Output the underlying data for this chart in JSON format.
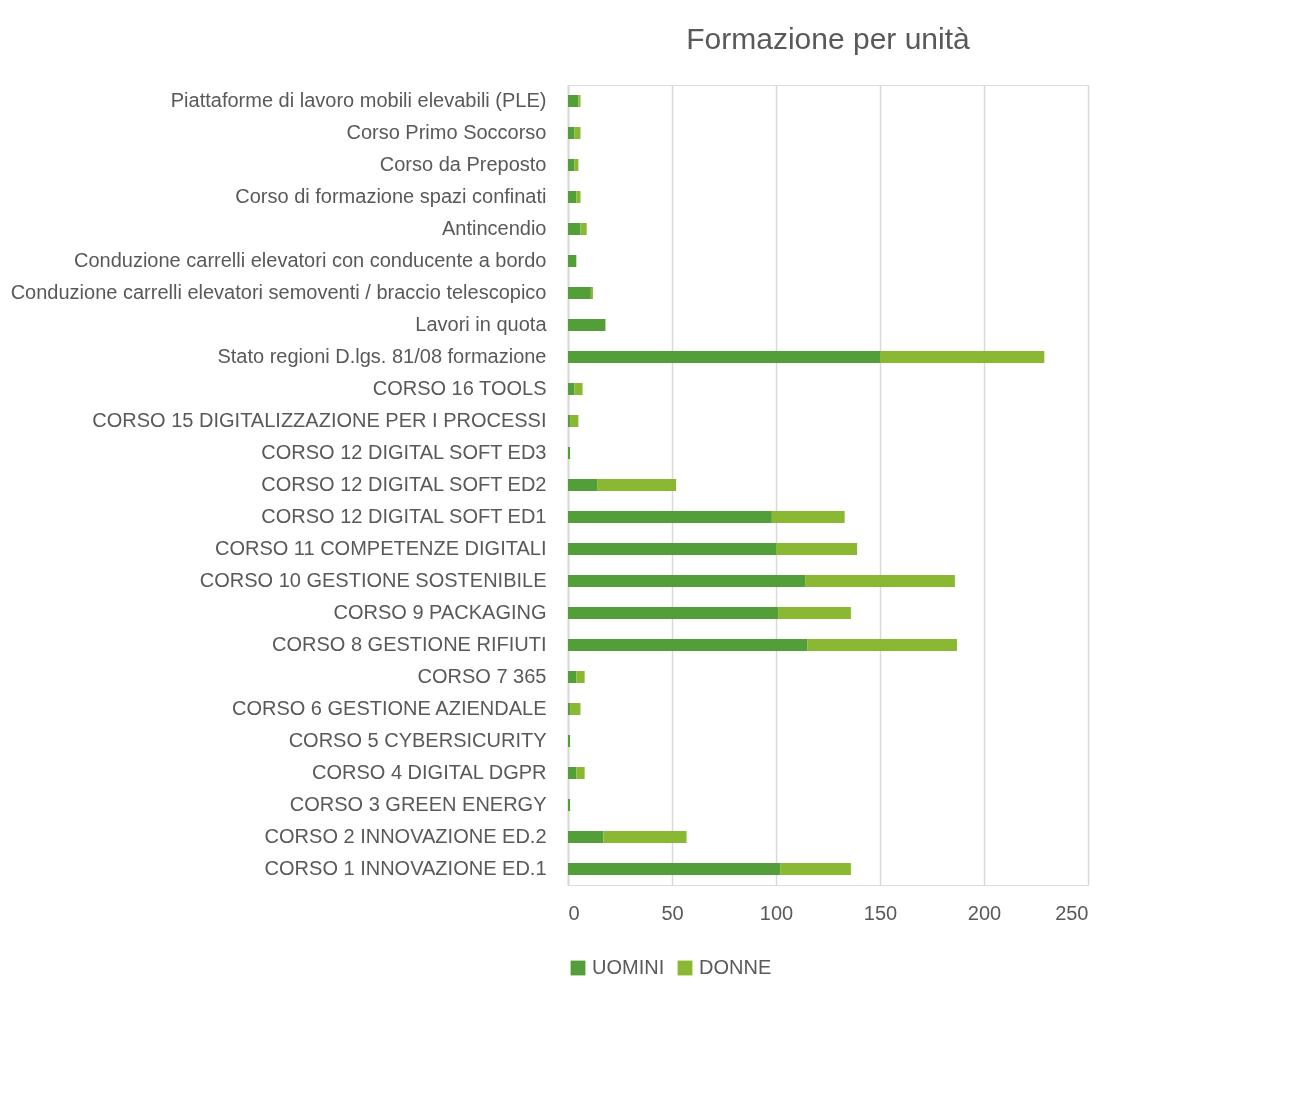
{
  "chart_data": {
    "type": "bar",
    "orientation": "horizontal",
    "stacked": true,
    "title": "Formazione per unità",
    "categories": [
      "Piattaforme di lavoro mobili elevabili (PLE)",
      "Corso Primo Soccorso",
      "Corso da Preposto",
      "Corso di formazione spazi confinati",
      "Antincendio",
      "Conduzione carrelli elevatori con conducente a bordo",
      "Conduzione carrelli elevatori semoventi / braccio telescopico",
      "Lavori in quota",
      "Stato regioni D.lgs. 81/08 formazione",
      "CORSO 16 TOOLS",
      "CORSO 15 DIGITALIZZAZIONE PER I PROCESSI",
      "CORSO 12 DIGITAL SOFT ED3",
      "CORSO 12 DIGITAL SOFT ED2",
      "CORSO 12 DIGITAL SOFT ED1",
      "CORSO 11 COMPETENZE DIGITALI",
      "CORSO 10 GESTIONE SOSTENIBILE",
      "CORSO 9 PACKAGING",
      "CORSO 8 GESTIONE RIFIUTI",
      "CORSO 7 365",
      "CORSO 6 GESTIONE AZIENDALE",
      "CORSO 5 CYBERSICURITY",
      "CORSO 4 DIGITAL DGPR",
      "CORSO 3 GREEN ENERGY",
      "CORSO 2 INNOVAZIONE ED.2",
      "CORSO 1 INNOVAZIONE ED.1"
    ],
    "series": [
      {
        "name": "UOMINI",
        "color": "#549e39",
        "values": [
          5,
          3,
          3,
          4,
          6,
          4,
          11,
          18,
          150,
          3,
          1,
          1,
          14,
          98,
          100,
          114,
          101,
          115,
          4,
          1,
          1,
          4,
          1,
          17,
          102
        ]
      },
      {
        "name": "DONNE",
        "color": "#8ab833",
        "values": [
          1,
          3,
          2,
          2,
          3,
          0,
          1,
          0,
          79,
          4,
          4,
          0,
          38,
          35,
          39,
          72,
          35,
          72,
          4,
          5,
          0,
          4,
          0,
          40,
          34
        ]
      }
    ],
    "xlim": [
      0,
      250
    ],
    "xticks": [
      0,
      50,
      100,
      150,
      200,
      250
    ],
    "grid": "x",
    "legend": "bottom"
  }
}
